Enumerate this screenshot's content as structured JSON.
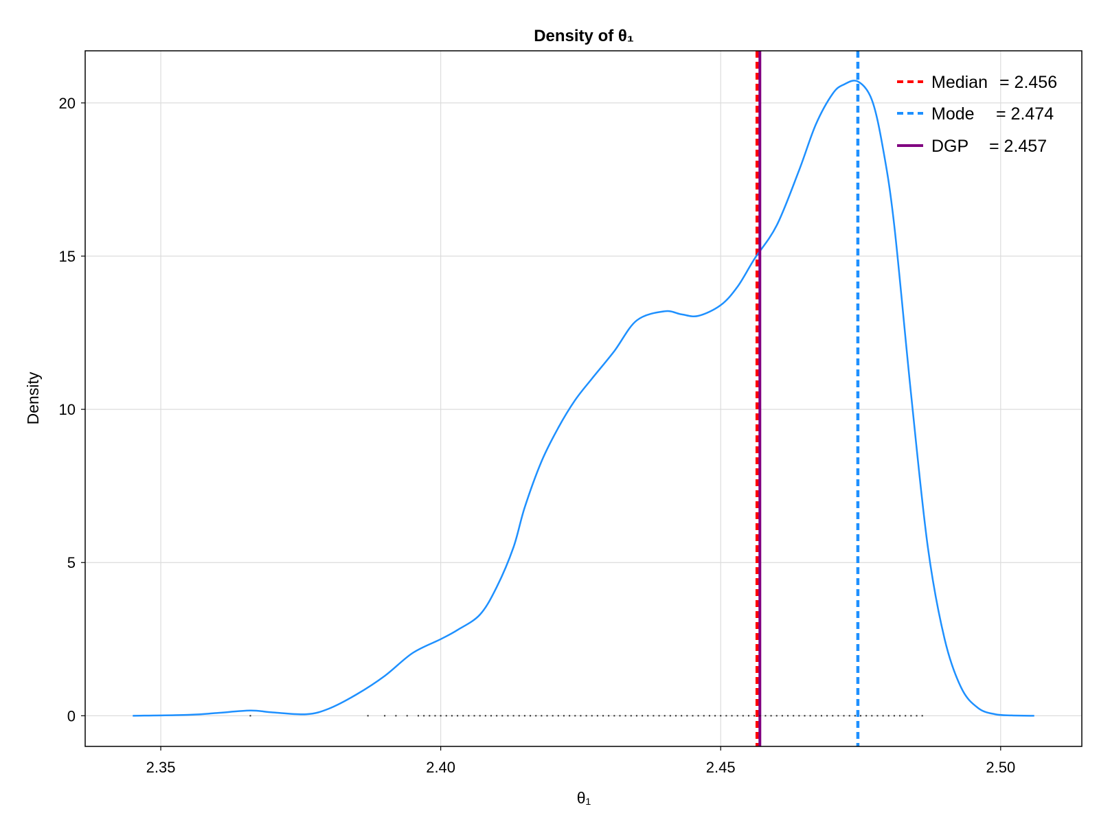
{
  "chart_data": {
    "type": "line",
    "title": "Density of θ₁",
    "xlabel": "θ₁",
    "ylabel": "Density",
    "xlim": [
      2.3365,
      2.5145
    ],
    "ylim": [
      -1.0,
      21.7
    ],
    "x_ticks": [
      2.35,
      2.4,
      2.45,
      2.5
    ],
    "x_tick_labels": [
      "2.35",
      "2.40",
      "2.45",
      "2.50"
    ],
    "y_ticks": [
      0,
      5,
      10,
      15,
      20
    ],
    "y_tick_labels": [
      "0",
      "5",
      "10",
      "15",
      "20"
    ],
    "grid": true,
    "series": [
      {
        "name": "density",
        "color": "#1e90ff",
        "x": [
          2.345,
          2.355,
          2.36,
          2.366,
          2.37,
          2.376,
          2.38,
          2.385,
          2.39,
          2.395,
          2.4,
          2.403,
          2.407,
          2.41,
          2.413,
          2.415,
          2.418,
          2.421,
          2.424,
          2.427,
          2.431,
          2.435,
          2.44,
          2.443,
          2.446,
          2.45,
          2.453,
          2.456,
          2.46,
          2.464,
          2.467,
          2.47,
          2.472,
          2.4745,
          2.477,
          2.479,
          2.481,
          2.484,
          2.487,
          2.49,
          2.493,
          2.496,
          2.499,
          2.502,
          2.506
        ],
        "y": [
          0.0,
          0.03,
          0.09,
          0.17,
          0.11,
          0.05,
          0.23,
          0.7,
          1.3,
          2.05,
          2.5,
          2.8,
          3.3,
          4.2,
          5.5,
          6.8,
          8.3,
          9.4,
          10.3,
          11.0,
          11.9,
          12.9,
          13.2,
          13.1,
          13.05,
          13.4,
          14.0,
          14.9,
          16.0,
          17.8,
          19.3,
          20.3,
          20.6,
          20.7,
          20.1,
          18.5,
          16.0,
          10.5,
          5.5,
          2.5,
          0.9,
          0.25,
          0.05,
          0.01,
          0.0
        ]
      }
    ],
    "reference_lines": [
      {
        "name": "Median",
        "label_value": "= 2.456",
        "value": 2.4565,
        "color": "#ff0000",
        "style": "dashed"
      },
      {
        "name": "Mode",
        "label_value": "= 2.474",
        "value": 2.4745,
        "color": "#1e90ff",
        "style": "dashed"
      },
      {
        "name": "DGP",
        "label_value": "= 2.457",
        "value": 2.457,
        "color": "#800080",
        "style": "solid"
      }
    ],
    "rug_x": [
      2.366,
      2.387,
      2.39,
      2.392,
      2.394,
      2.396,
      2.397,
      2.398,
      2.399,
      2.4,
      2.401,
      2.402,
      2.403,
      2.404,
      2.405,
      2.406,
      2.407,
      2.408,
      2.409,
      2.41,
      2.411,
      2.412,
      2.413,
      2.414,
      2.415,
      2.416,
      2.417,
      2.418,
      2.419,
      2.42,
      2.421,
      2.422,
      2.423,
      2.424,
      2.425,
      2.426,
      2.427,
      2.428,
      2.429,
      2.43,
      2.431,
      2.432,
      2.433,
      2.434,
      2.435,
      2.436,
      2.437,
      2.438,
      2.439,
      2.44,
      2.441,
      2.442,
      2.443,
      2.444,
      2.445,
      2.446,
      2.447,
      2.448,
      2.449,
      2.45,
      2.451,
      2.452,
      2.453,
      2.454,
      2.455,
      2.456,
      2.457,
      2.458,
      2.459,
      2.46,
      2.461,
      2.462,
      2.463,
      2.464,
      2.465,
      2.466,
      2.467,
      2.468,
      2.469,
      2.47,
      2.471,
      2.472,
      2.473,
      2.474,
      2.475,
      2.476,
      2.477,
      2.478,
      2.479,
      2.48,
      2.481,
      2.482,
      2.483,
      2.484,
      2.485,
      2.486
    ],
    "legend": {
      "position": "top-right",
      "entries": [
        {
          "label": "Median",
          "value": "= 2.456"
        },
        {
          "label": "Mode",
          "value": "= 2.474"
        },
        {
          "label": "DGP",
          "value": "= 2.457"
        }
      ]
    }
  }
}
